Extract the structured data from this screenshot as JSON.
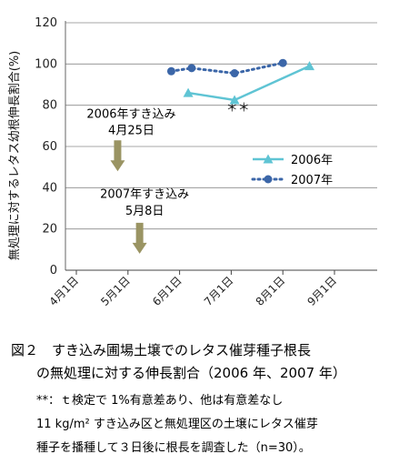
{
  "chart_data": {
    "type": "line",
    "ylabel": "無処理に対するレタス幼根伸長割合(%)",
    "ylim": [
      0,
      120
    ],
    "yticks": [
      0,
      20,
      40,
      60,
      80,
      100,
      120
    ],
    "x_categories": [
      "4月1日",
      "5月1日",
      "6月1日",
      "7月1日",
      "8月1日",
      "9月1日"
    ],
    "grid": "horizontal",
    "legend_position": "lower-right",
    "series": [
      {
        "name": "2006年",
        "color": "#5fc4d4",
        "marker": "triangle",
        "line_style": "solid",
        "points": [
          {
            "x": "2006-06-06",
            "y": 86
          },
          {
            "x": "2006-07-03",
            "y": 82.5
          },
          {
            "x": "2006-08-17",
            "y": 99
          }
        ]
      },
      {
        "name": "2007年",
        "color": "#3b66a8",
        "marker": "circle",
        "line_style": "dotted",
        "points": [
          {
            "x": "2007-05-27",
            "y": 96.5
          },
          {
            "x": "2007-06-08",
            "y": 98
          },
          {
            "x": "2007-07-03",
            "y": 95.5
          },
          {
            "x": "2007-08-01",
            "y": 100.5
          }
        ]
      }
    ],
    "annotations": [
      {
        "text": "＊＊",
        "x": "07-05",
        "y": 77
      },
      {
        "text": "2006年すき込み",
        "x": "05-03",
        "y": 74
      },
      {
        "text": "4月25日",
        "x": "05-03",
        "y": 66
      },
      {
        "text": "2007年すき込み",
        "x": "05-11",
        "y": 35
      },
      {
        "text": "5月8日",
        "x": "05-11",
        "y": 27
      }
    ],
    "arrows": [
      {
        "x": "04-25",
        "y_from": 63,
        "y_to": 48,
        "color": "#9a9463"
      },
      {
        "x": "05-08",
        "y_from": 23,
        "y_to": 8,
        "color": "#9a9463"
      }
    ]
  },
  "caption": {
    "line1": "図２　すき込み圃場土壌でのレタス催芽種子根長",
    "line2": "の無処理に対する伸長割合（2006 年、2007 年）",
    "line3": "**：ｔ検定で 1%有意差あり、他は有意差なし",
    "line4": "11 kg/m² すき込み区と無処理区の土壌にレタス催芽",
    "line5": "種子を播種して３日後に根長を調査した（n=30）。"
  }
}
